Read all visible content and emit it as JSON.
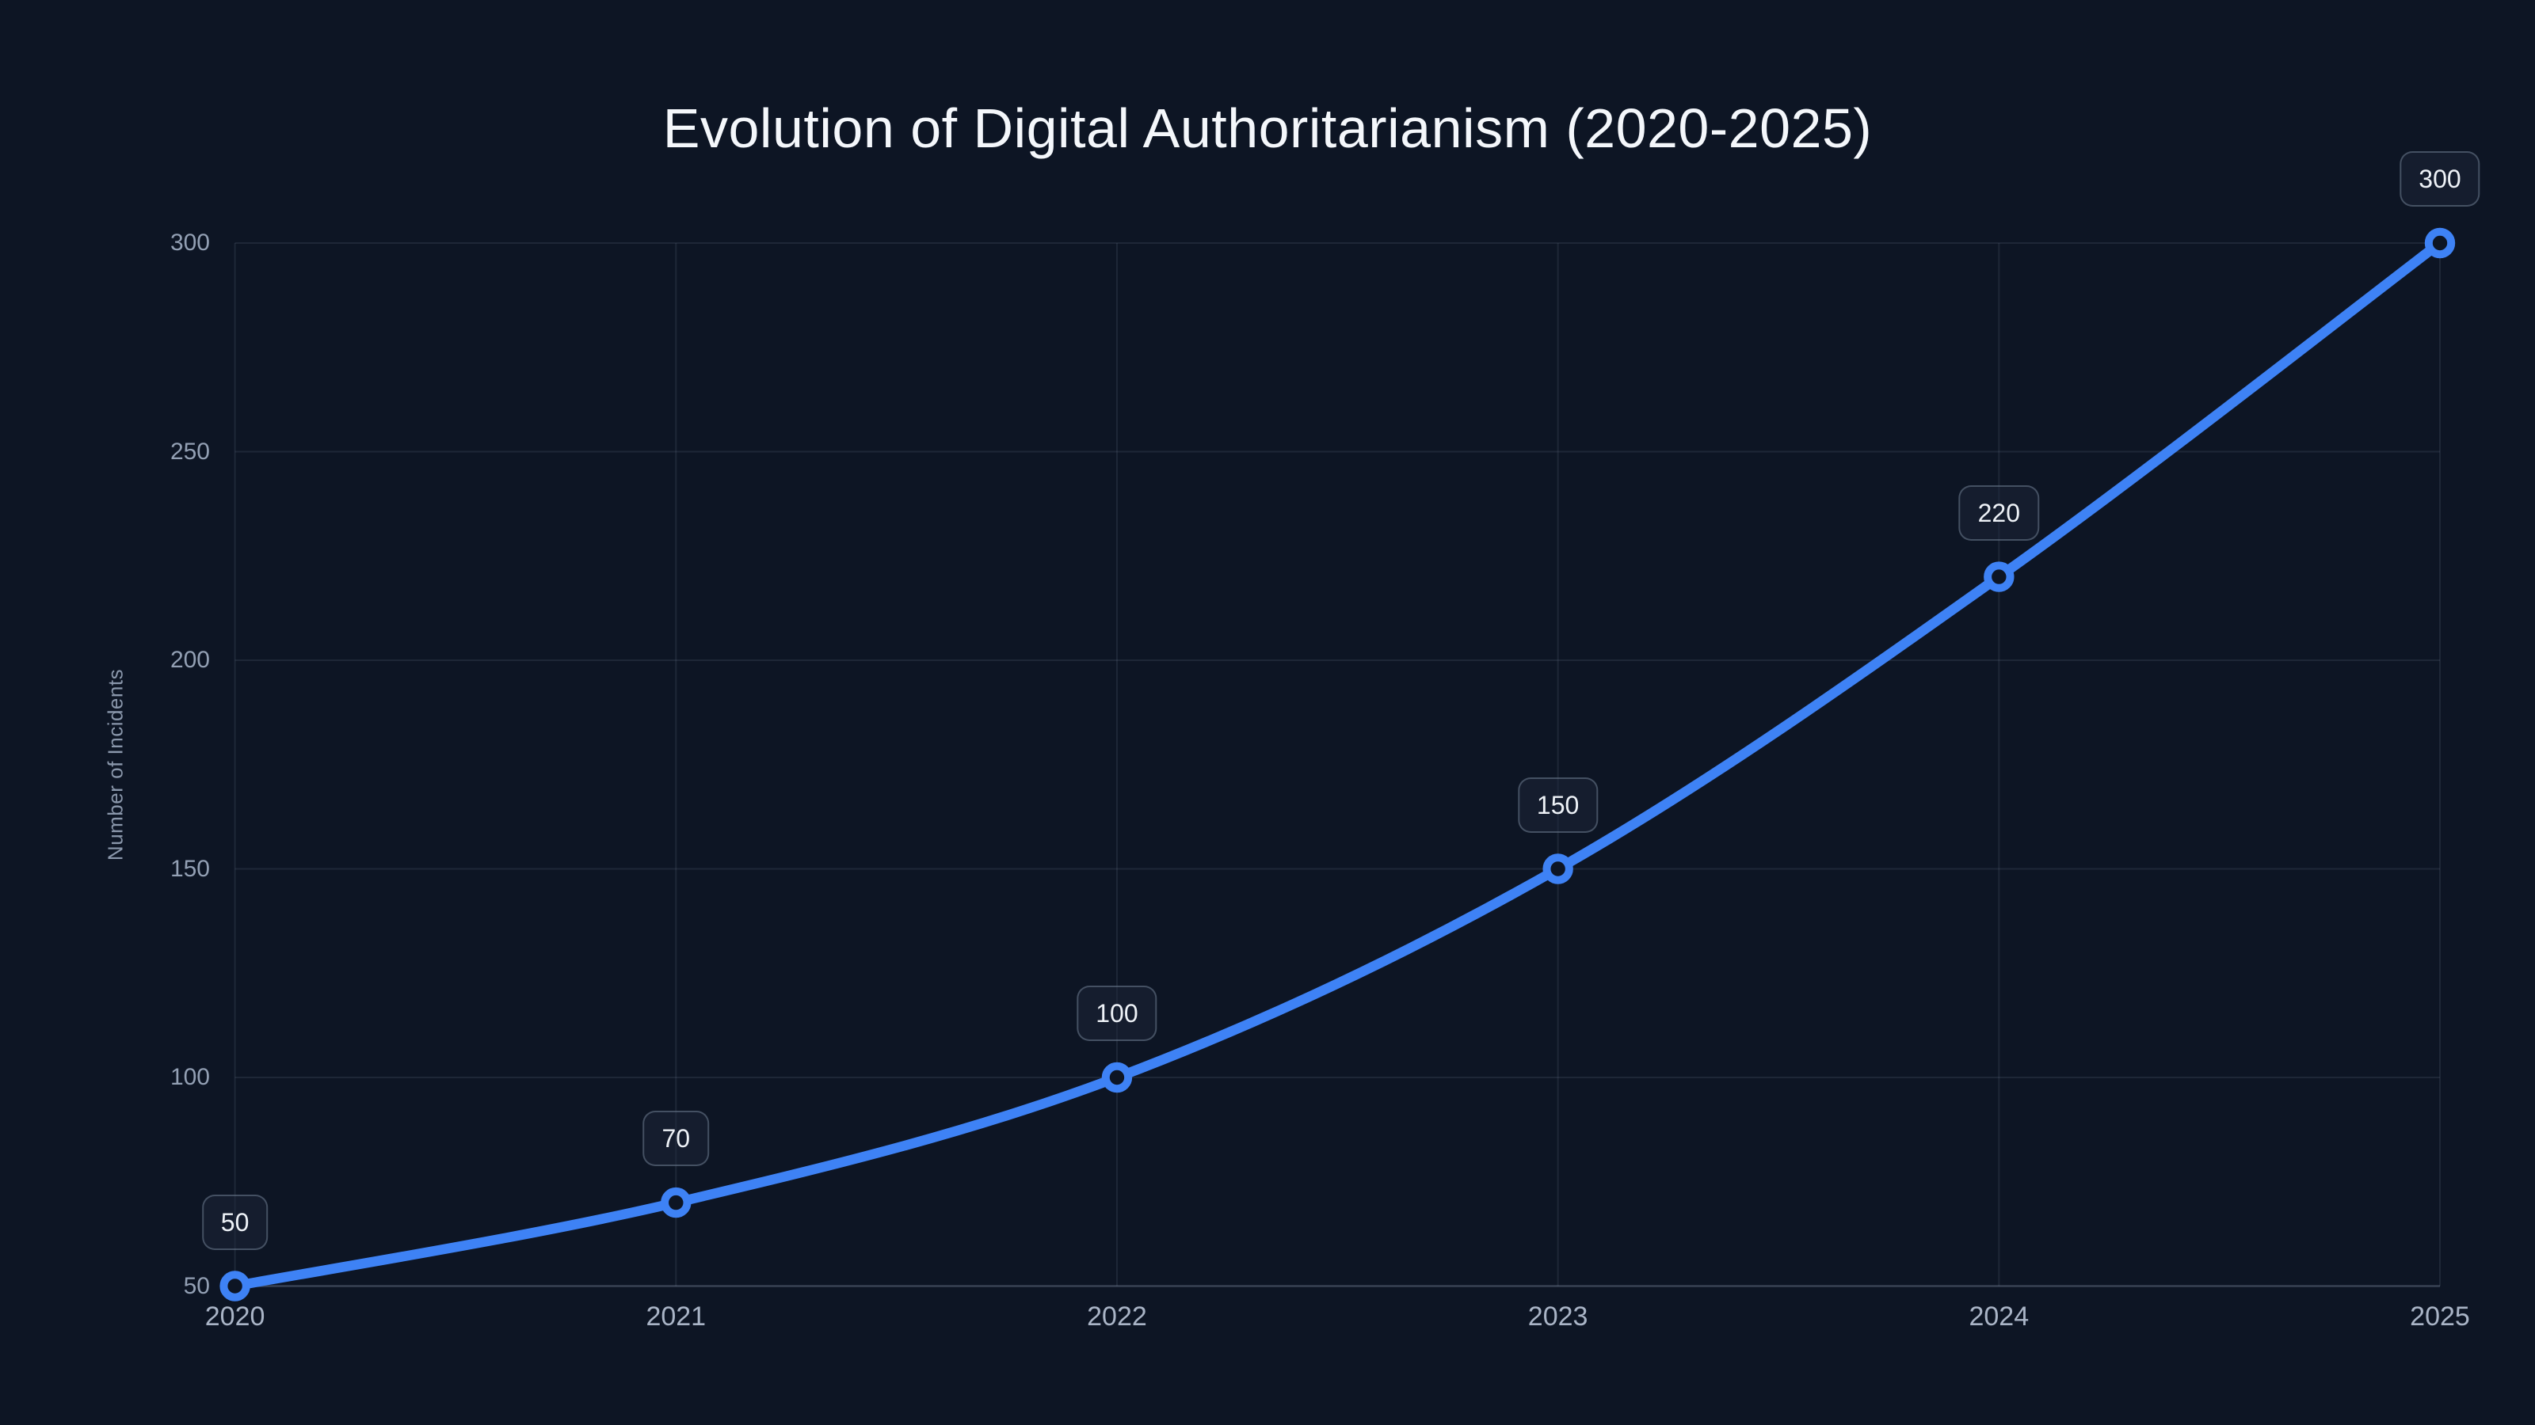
{
  "chart_data": {
    "type": "line",
    "title": "Evolution of Digital Authoritarianism (2020-2025)",
    "xlabel": "",
    "ylabel": "Number of Incidents",
    "categories": [
      "2020",
      "2021",
      "2022",
      "2023",
      "2024",
      "2025"
    ],
    "series": [
      {
        "name": "Number of Incidents",
        "values": [
          50,
          70,
          100,
          150,
          220,
          300
        ]
      }
    ],
    "point_labels": [
      "50",
      "70",
      "100",
      "150",
      "220",
      "300"
    ],
    "yticks": [
      50,
      100,
      150,
      200,
      250,
      300
    ],
    "ylim": [
      50,
      300
    ],
    "grid": true,
    "legend": false,
    "marker": "open-circle",
    "curve": "smooth"
  },
  "style": {
    "background": "#0d1524",
    "line_color": "#3e82f5",
    "marker_fill": "#0d1524",
    "grid_color": "rgba(148,163,184,0.13)",
    "axis_line_color": "rgba(148,163,184,0.32)",
    "title_color": "#f4f7fb",
    "ytick_color": "#93a0b4",
    "xtick_color": "#a9b4c6",
    "axis_title_color": "#8a97ab",
    "badge_bg": "rgba(30,41,59,0.45)",
    "badge_border": "rgba(148,163,184,0.38)",
    "badge_text": "#eef2f7"
  }
}
